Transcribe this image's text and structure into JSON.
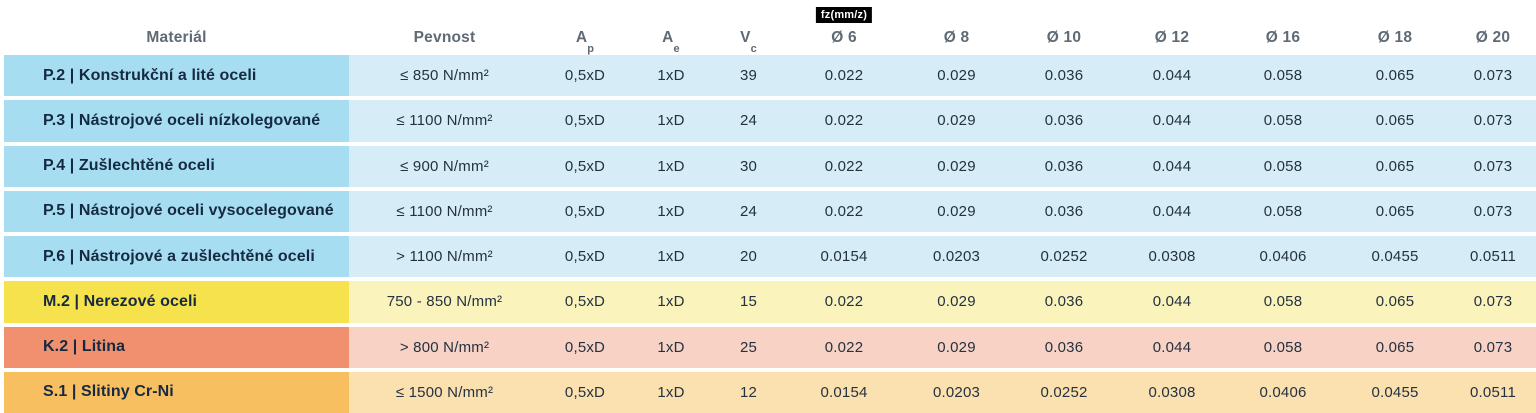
{
  "chart_data": {
    "type": "table",
    "columns": [
      "Materiál",
      "Pevnost",
      "Ap",
      "Ae",
      "Vc",
      "Ø 6",
      "Ø 8",
      "Ø 10",
      "Ø 12",
      "Ø 16",
      "Ø 18",
      "Ø 20"
    ],
    "fz_unit_badge": "fz(mm/z)",
    "rows": [
      {
        "group": "steel",
        "material": "P.2 | Konstrukční a lité oceli",
        "pevnost": "≤ 850 N/mm²",
        "ap": "0,5xD",
        "ae": "1xD",
        "vc": "39",
        "fz": [
          "0.022",
          "0.029",
          "0.036",
          "0.044",
          "0.058",
          "0.065",
          "0.073"
        ],
        "color_strong": "#a7ddf1",
        "color_light": "#d6edf8"
      },
      {
        "group": "steel",
        "material": "P.3 | Nástrojové oceli nízkolegované",
        "pevnost": "≤ 1100 N/mm²",
        "ap": "0,5xD",
        "ae": "1xD",
        "vc": "24",
        "fz": [
          "0.022",
          "0.029",
          "0.036",
          "0.044",
          "0.058",
          "0.065",
          "0.073"
        ],
        "color_strong": "#a7ddf1",
        "color_light": "#d6edf8"
      },
      {
        "group": "steel",
        "material": "P.4 | Zušlechtěné oceli",
        "pevnost": "≤ 900 N/mm²",
        "ap": "0,5xD",
        "ae": "1xD",
        "vc": "30",
        "fz": [
          "0.022",
          "0.029",
          "0.036",
          "0.044",
          "0.058",
          "0.065",
          "0.073"
        ],
        "color_strong": "#a7ddf1",
        "color_light": "#d6edf8"
      },
      {
        "group": "steel",
        "material": "P.5 | Nástrojové oceli vysocelegované",
        "pevnost": "≤ 1100 N/mm²",
        "ap": "0,5xD",
        "ae": "1xD",
        "vc": "24",
        "fz": [
          "0.022",
          "0.029",
          "0.036",
          "0.044",
          "0.058",
          "0.065",
          "0.073"
        ],
        "color_strong": "#a7ddf1",
        "color_light": "#d6edf8"
      },
      {
        "group": "steel",
        "material": "P.6 | Nástrojové a zušlechtěné oceli",
        "pevnost": "> 1100 N/mm²",
        "ap": "0,5xD",
        "ae": "1xD",
        "vc": "20",
        "fz": [
          "0.0154",
          "0.0203",
          "0.0252",
          "0.0308",
          "0.0406",
          "0.0455",
          "0.0511"
        ],
        "color_strong": "#a7ddf1",
        "color_light": "#d6edf8"
      },
      {
        "group": "stainless",
        "material": "M.2 | Nerezové oceli",
        "pevnost": "750 - 850 N/mm²",
        "ap": "0,5xD",
        "ae": "1xD",
        "vc": "15",
        "fz": [
          "0.022",
          "0.029",
          "0.036",
          "0.044",
          "0.058",
          "0.065",
          "0.073"
        ],
        "color_strong": "#f5e24c",
        "color_light": "#faf3bc"
      },
      {
        "group": "cast-iron",
        "material": "K.2 | Litina",
        "pevnost": "> 800 N/mm²",
        "ap": "0,5xD",
        "ae": "1xD",
        "vc": "25",
        "fz": [
          "0.022",
          "0.029",
          "0.036",
          "0.044",
          "0.058",
          "0.065",
          "0.073"
        ],
        "color_strong": "#f1906e",
        "color_light": "#f8d3c5"
      },
      {
        "group": "superalloy",
        "material": "S.1 | Slitiny Cr-Ni",
        "pevnost": "≤ 1500 N/mm²",
        "ap": "0,5xD",
        "ae": "1xD",
        "vc": "12",
        "fz": [
          "0.0154",
          "0.0203",
          "0.0252",
          "0.0308",
          "0.0406",
          "0.0455",
          "0.0511"
        ],
        "color_strong": "#f7bf60",
        "color_light": "#fbe1b0"
      }
    ]
  },
  "headers": {
    "material": "Materiál",
    "pevnost": "Pevnost",
    "ap": {
      "base": "A",
      "sub": "p"
    },
    "ae": {
      "base": "A",
      "sub": "e"
    },
    "vc": {
      "base": "V",
      "sub": "c"
    },
    "fz_badge": "fz(mm/z)",
    "diameters": [
      "Ø 6",
      "Ø 8",
      "Ø 10",
      "Ø 12",
      "Ø 16",
      "Ø 18",
      "Ø 20"
    ]
  },
  "colors": {
    "steel_strong": "#a7ddf1",
    "steel_light": "#d6edf8",
    "stainless_strong": "#f5e24c",
    "stainless_light": "#faf3bc",
    "cast_iron_strong": "#f1906e",
    "cast_iron_light": "#f8d3c5",
    "superalloy_strong": "#f7bf60",
    "superalloy_light": "#fbe1b0",
    "header_text": "#5f6a74",
    "label_text": "#152a42",
    "value_text": "#243140",
    "badge_bg": "#000000",
    "badge_text": "#ffffff",
    "row_gap": "#ffffff"
  }
}
